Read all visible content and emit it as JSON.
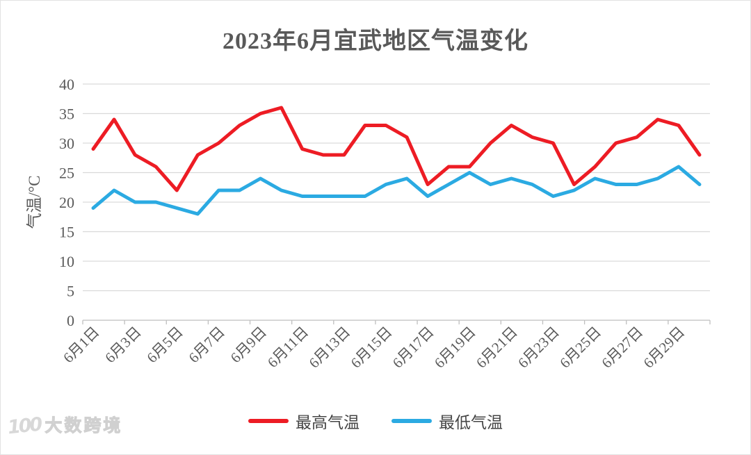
{
  "page": {
    "background_color": "#ffffff",
    "border_color": "#e2e2e2"
  },
  "title": {
    "text": "2023年6月宜武地区气温变化",
    "color": "#595959"
  },
  "y_axis": {
    "title": "气温/°C",
    "tick_labels": [
      "0",
      "5",
      "10",
      "15",
      "20",
      "25",
      "30",
      "35",
      "40"
    ],
    "label_color": "#595959",
    "gridline_color": "#d9d9d9",
    "axis_line_color": "#bfbfbf"
  },
  "x_axis": {
    "visible_tick_labels": [
      "6月1日",
      "6月3日",
      "6月5日",
      "6月7日",
      "6月9日",
      "6月11日",
      "6月13日",
      "6月15日",
      "6月17日",
      "6月19日",
      "6月21日",
      "6月23日",
      "6月25日",
      "6月27日",
      "6月29日"
    ],
    "label_color": "#595959"
  },
  "legend": {
    "items": [
      {
        "label": "最高气温",
        "color": "#ed1c24"
      },
      {
        "label": "最低气温",
        "color": "#2baae2"
      }
    ]
  },
  "watermark": {
    "logo_text": "100",
    "text": "大数跨境"
  },
  "chart_data": {
    "type": "line",
    "title": "2023年6月宜武地区气温变化",
    "ylabel": "气温/°C",
    "xlabel": "",
    "ylim": [
      0,
      40
    ],
    "ytick_step": 5,
    "grid": true,
    "legend_position": "bottom",
    "x_label_interval": 2,
    "categories": [
      "6月1日",
      "6月2日",
      "6月3日",
      "6月4日",
      "6月5日",
      "6月6日",
      "6月7日",
      "6月8日",
      "6月9日",
      "6月10日",
      "6月11日",
      "6月12日",
      "6月13日",
      "6月14日",
      "6月15日",
      "6月16日",
      "6月17日",
      "6月18日",
      "6月19日",
      "6月20日",
      "6月21日",
      "6月22日",
      "6月23日",
      "6月24日",
      "6月25日",
      "6月26日",
      "6月27日",
      "6月28日",
      "6月29日",
      "6月30日"
    ],
    "series": [
      {
        "name": "最高气温",
        "color": "#ed1c24",
        "values": [
          29,
          34,
          28,
          26,
          22,
          28,
          30,
          33,
          35,
          36,
          29,
          28,
          28,
          33,
          33,
          31,
          23,
          26,
          26,
          30,
          33,
          31,
          30,
          23,
          26,
          30,
          31,
          34,
          33,
          28
        ]
      },
      {
        "name": "最低气温",
        "color": "#2baae2",
        "values": [
          19,
          22,
          20,
          20,
          19,
          18,
          22,
          22,
          24,
          22,
          21,
          21,
          21,
          21,
          23,
          24,
          21,
          23,
          25,
          23,
          24,
          23,
          21,
          22,
          24,
          23,
          23,
          24,
          26,
          23
        ]
      }
    ]
  }
}
